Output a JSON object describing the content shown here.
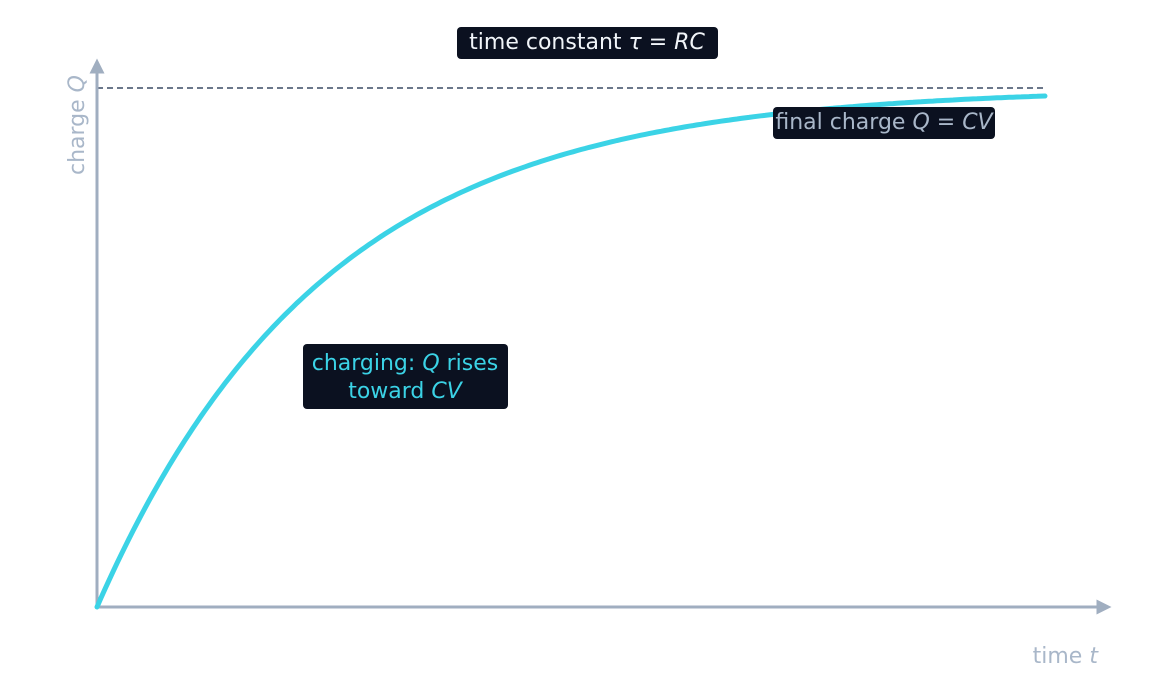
{
  "title": {
    "text": "time constant",
    "math": "τ = RC"
  },
  "final_label": {
    "text": "final charge",
    "math": "Q = CV"
  },
  "charging_label": {
    "line1": [
      "charging:",
      "Q",
      "rises"
    ],
    "line2": [
      "toward",
      "CV"
    ]
  },
  "y_axis": {
    "text": "charge",
    "math": "Q"
  },
  "x_axis": {
    "text": "time",
    "math": "t"
  }
}
